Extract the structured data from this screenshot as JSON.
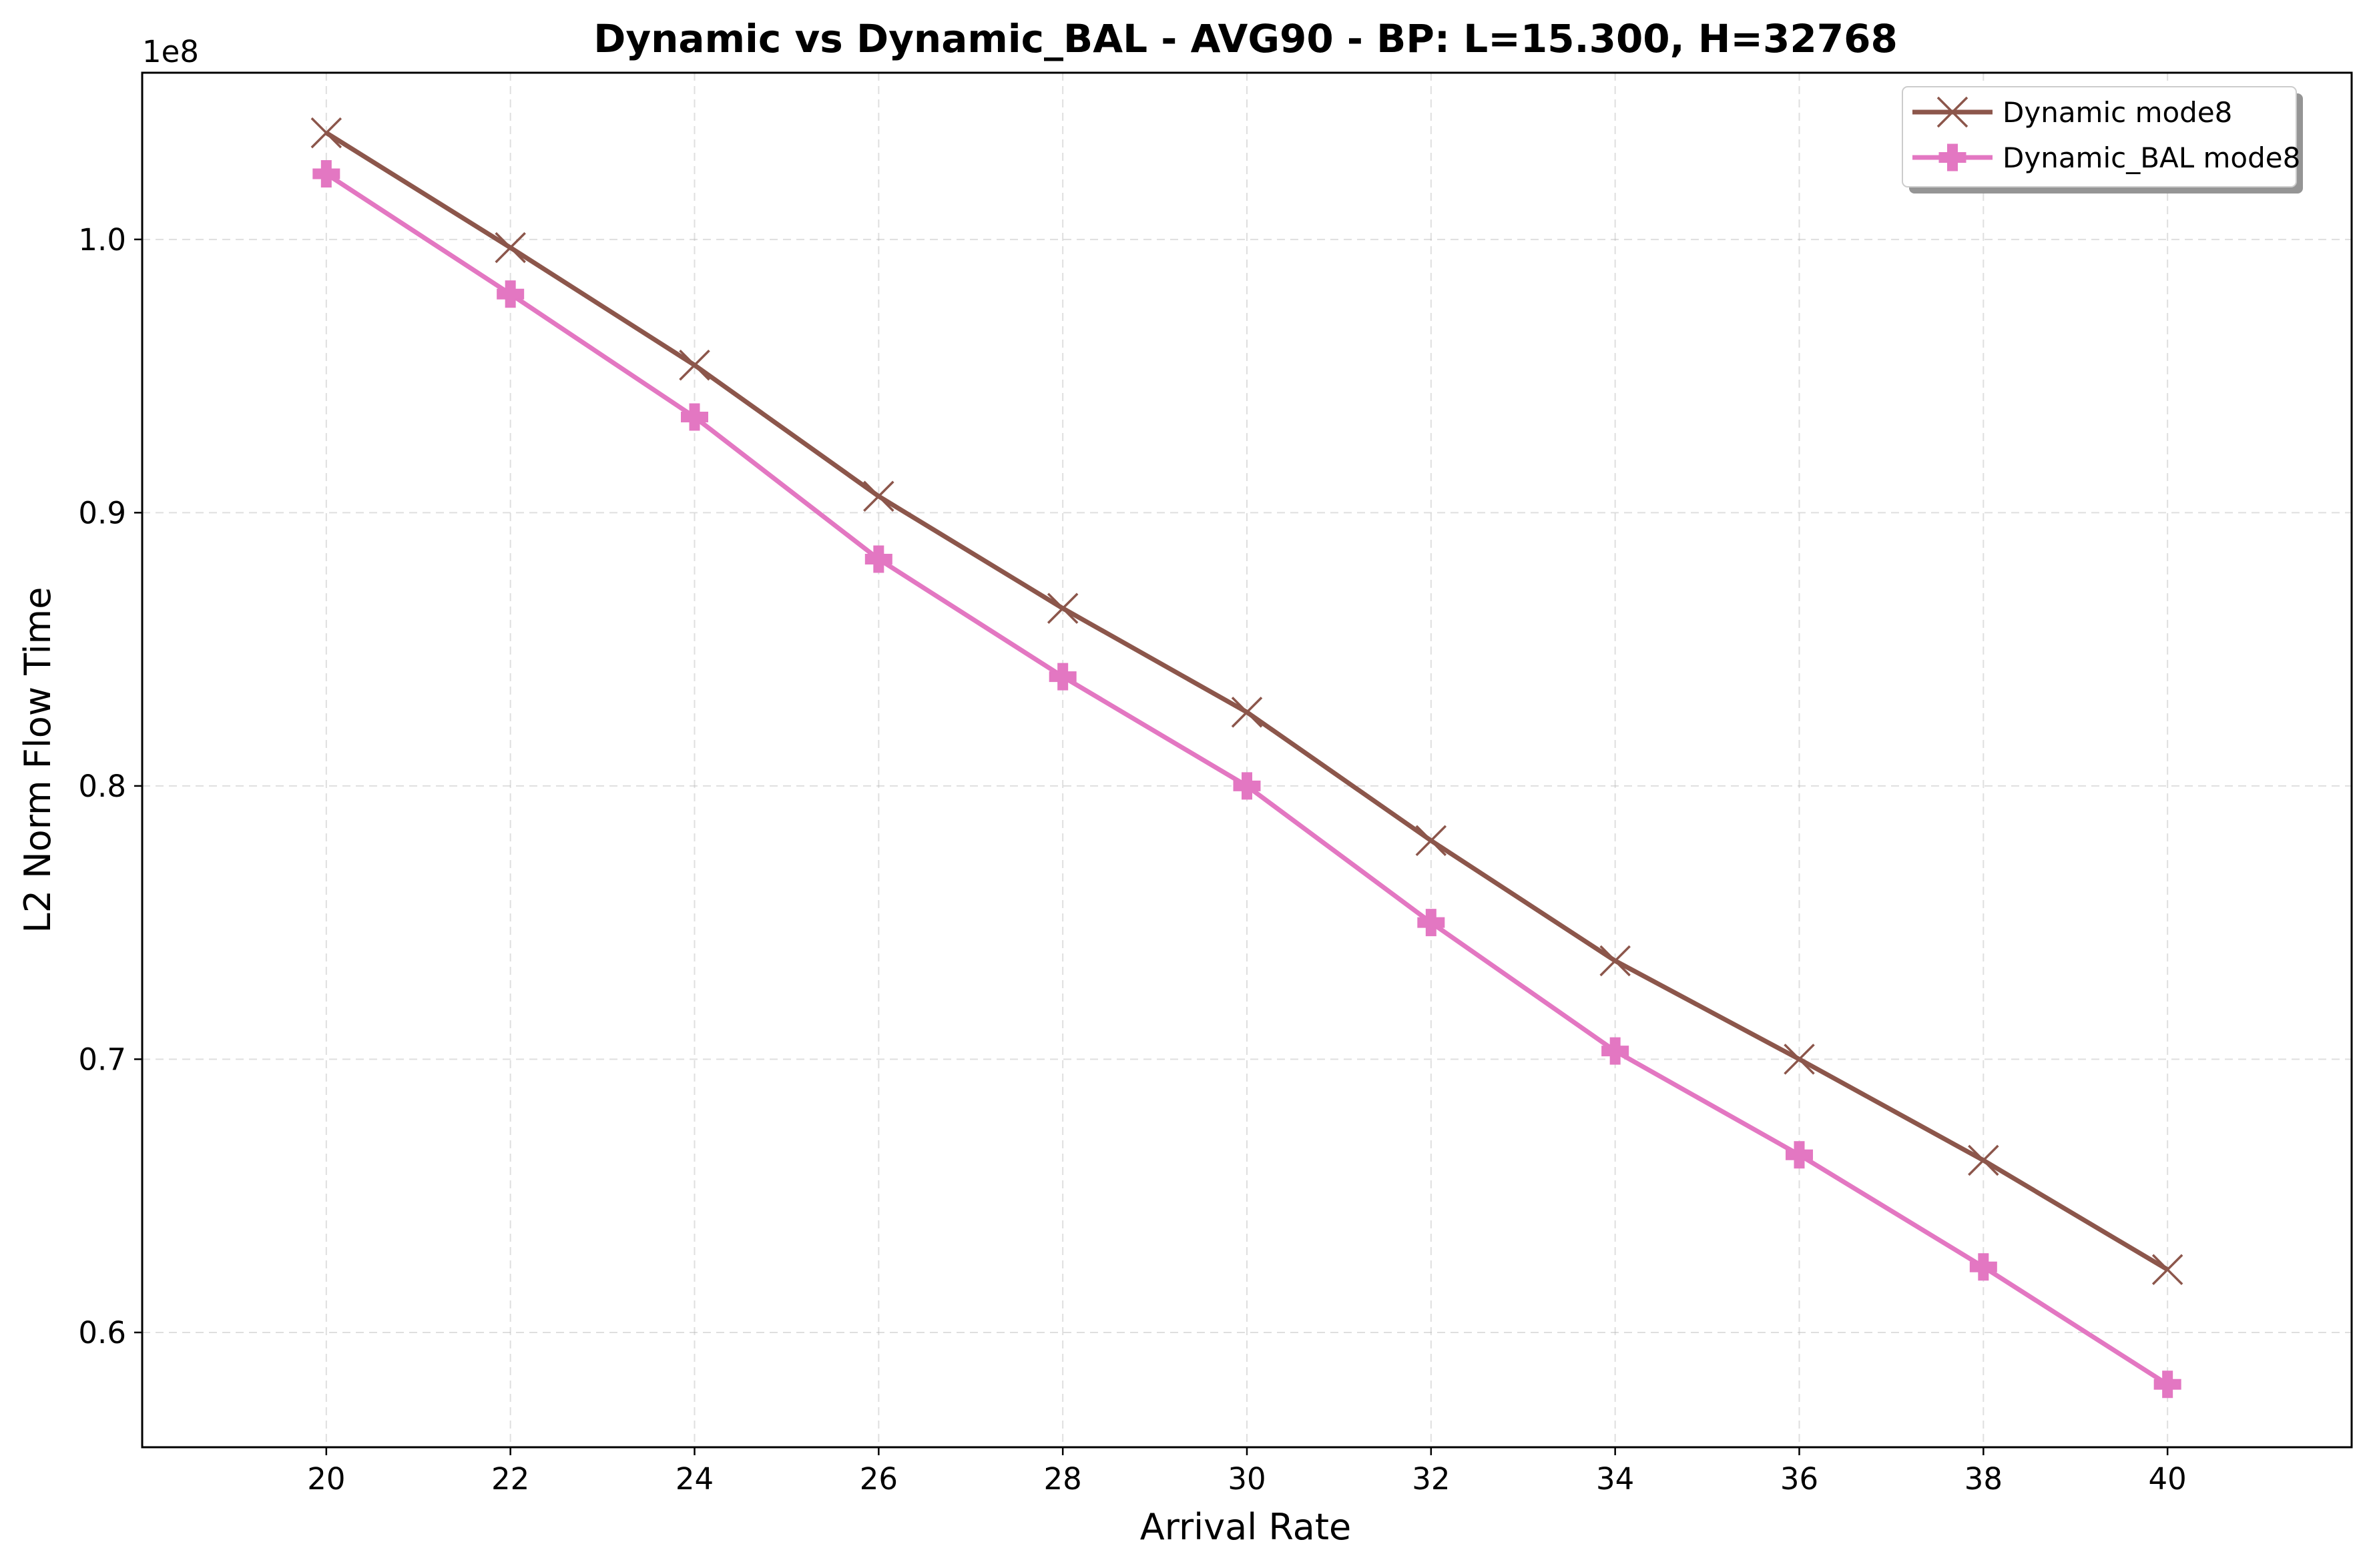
{
  "chart_data": {
    "type": "line",
    "title": "Dynamic vs Dynamic_BAL - AVG90 - BP: L=15.300, H=32768",
    "xlabel": "Arrival Rate",
    "ylabel": "L2 Norm Flow Time",
    "y_offset_label": "1e8",
    "x": [
      20,
      22,
      24,
      26,
      28,
      30,
      32,
      34,
      36,
      38,
      40
    ],
    "xlim": [
      18,
      42
    ],
    "ylim": [
      0.558,
      1.061
    ],
    "x_ticks": [
      20,
      22,
      24,
      26,
      28,
      30,
      32,
      34,
      36,
      38,
      40
    ],
    "y_ticks": [
      0.6,
      0.7,
      0.8,
      0.9,
      1.0
    ],
    "y_tick_labels": [
      "0.6",
      "0.7",
      "0.8",
      "0.9",
      "1.0"
    ],
    "grid": true,
    "legend_position": "top-right",
    "series": [
      {
        "name": "Dynamic mode8",
        "color": "#8c564b",
        "marker": "x",
        "values": [
          1.039,
          0.997,
          0.954,
          0.906,
          0.865,
          0.827,
          0.78,
          0.736,
          0.7,
          0.663,
          0.623
        ]
      },
      {
        "name": "Dynamic_BAL mode8",
        "color": "#e377c2",
        "marker": "plus-filled",
        "values": [
          1.024,
          0.98,
          0.935,
          0.883,
          0.84,
          0.8,
          0.75,
          0.703,
          0.665,
          0.624,
          0.581
        ]
      }
    ]
  }
}
